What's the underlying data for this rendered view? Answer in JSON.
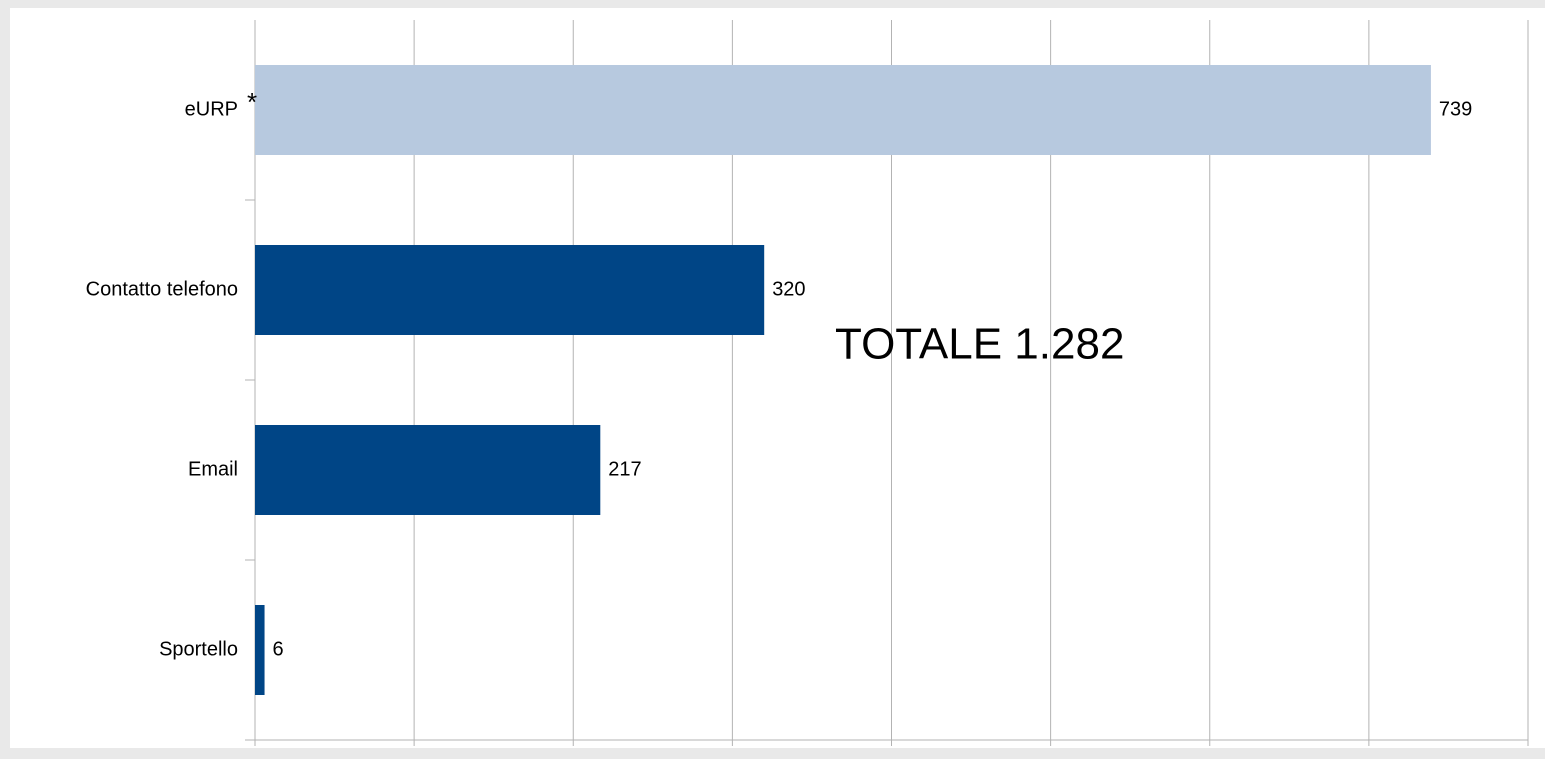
{
  "chart_data": {
    "type": "bar",
    "orientation": "horizontal",
    "categories": [
      "eURP",
      "Contatto telefono",
      "Email",
      "Sportello"
    ],
    "values": [
      739,
      320,
      217,
      6
    ],
    "colors": [
      "#b7c9df",
      "#004586",
      "#004586",
      "#004586"
    ],
    "xlim": [
      0,
      800
    ],
    "xticks": [
      0,
      100,
      200,
      300,
      400,
      500,
      600,
      700,
      800
    ],
    "grid": true,
    "annotations": [
      "*",
      "TOTALE 1.282"
    ]
  }
}
